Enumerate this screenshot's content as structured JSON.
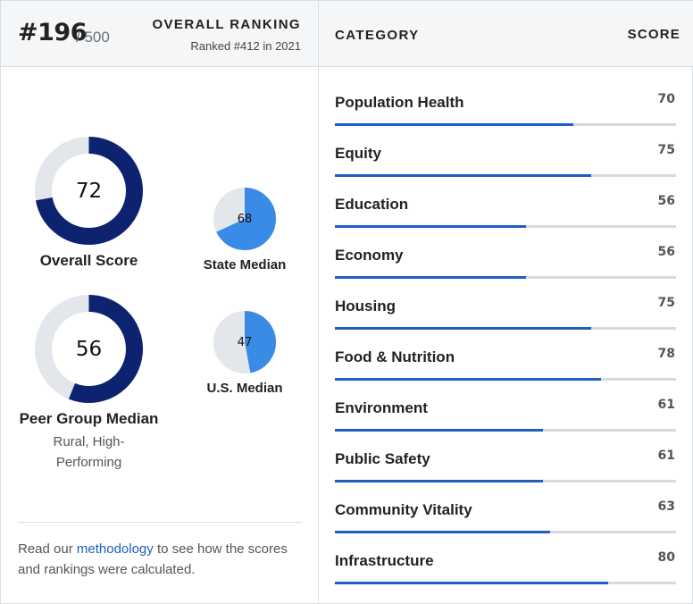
{
  "overall": {
    "rank": "#196",
    "total": "/ 500",
    "title": "OVERALL RANKING",
    "previous": "Ranked #412 in 2021"
  },
  "table_header": {
    "category": "CATEGORY",
    "score": "SCORE"
  },
  "donuts": {
    "overall": {
      "value": 72,
      "label": "Overall Score"
    },
    "peer": {
      "value": 56,
      "label": "Peer Group Median",
      "sublabel_1": "Rural, High-",
      "sublabel_2": "Performing"
    },
    "state": {
      "value": 68,
      "label": "State Median"
    },
    "us": {
      "value": 47,
      "label": "U.S. Median"
    }
  },
  "colors": {
    "donut_dark": "#0d2370",
    "donut_light": "#3a8be6",
    "donut_track": "#e3e6ea",
    "bar_fill": "#1f5fbf"
  },
  "note": {
    "before": "Read our ",
    "link": "methodology",
    "after": " to see how the scores and rankings were calculated."
  },
  "categories": [
    {
      "name": "Population Health",
      "score": 70
    },
    {
      "name": "Equity",
      "score": 75
    },
    {
      "name": "Education",
      "score": 56
    },
    {
      "name": "Economy",
      "score": 56
    },
    {
      "name": "Housing",
      "score": 75
    },
    {
      "name": "Food & Nutrition",
      "score": 78
    },
    {
      "name": "Environment",
      "score": 61
    },
    {
      "name": "Public Safety",
      "score": 61
    },
    {
      "name": "Community Vitality",
      "score": 63
    },
    {
      "name": "Infrastructure",
      "score": 80
    }
  ]
}
